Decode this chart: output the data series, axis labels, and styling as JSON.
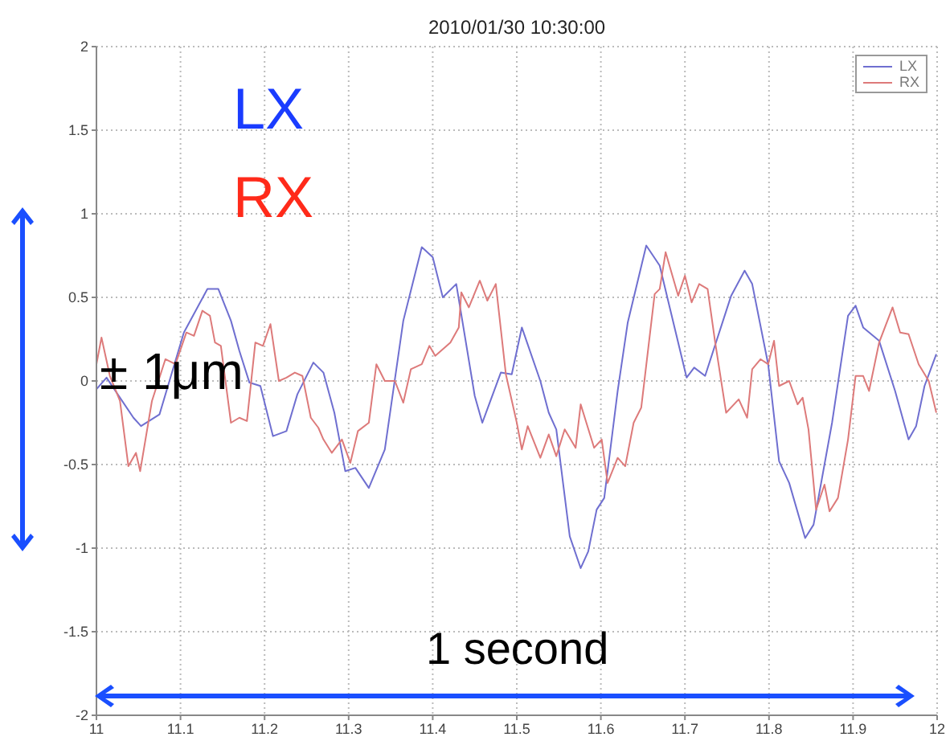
{
  "chart_data": {
    "type": "line",
    "title": "2010/01/30 10:30:00",
    "annotations": [
      "LX",
      "RX",
      "± 1μm",
      "1 second"
    ],
    "xlim": [
      11,
      12
    ],
    "xticks": [
      11,
      11.1,
      11.2,
      11.3,
      11.4,
      11.5,
      11.6,
      11.7,
      11.8,
      11.9,
      12
    ],
    "ylim": [
      -2,
      2
    ],
    "yticks": [
      -2,
      -1.5,
      -1,
      -0.5,
      0,
      0.5,
      1,
      1.5,
      2
    ],
    "grid": true,
    "legend": "top right",
    "marker": "none",
    "line_style": "solid",
    "series": [
      {
        "name": "LX",
        "color": "#6f6fd0",
        "x": [
          11,
          11.012,
          11.044,
          11.053,
          11.075,
          11.104,
          11.132,
          11.145,
          11.16,
          11.17,
          11.182,
          11.195,
          11.21,
          11.226,
          11.239,
          11.258,
          11.27,
          11.283,
          11.296,
          11.308,
          11.324,
          11.343,
          11.365,
          11.387,
          11.4,
          11.412,
          11.428,
          11.45,
          11.459,
          11.481,
          11.494,
          11.506,
          11.528,
          11.538,
          11.547,
          11.563,
          11.576,
          11.585,
          11.595,
          11.604,
          11.62,
          11.632,
          11.654,
          11.67,
          11.68,
          11.702,
          11.711,
          11.724,
          11.755,
          11.771,
          11.78,
          11.799,
          11.812,
          11.824,
          11.843,
          11.853,
          11.875,
          11.894,
          11.903,
          11.912,
          11.931,
          11.95,
          11.966,
          11.975,
          11.985,
          11.999
        ],
        "values": [
          -0.05,
          0.02,
          -0.22,
          -0.27,
          -0.2,
          0.29,
          0.55,
          0.55,
          0.36,
          0.18,
          -0.01,
          -0.03,
          -0.33,
          -0.3,
          -0.08,
          0.11,
          0.05,
          -0.19,
          -0.54,
          -0.52,
          -0.64,
          -0.41,
          0.36,
          0.8,
          0.74,
          0.5,
          0.58,
          -0.09,
          -0.25,
          0.05,
          0.04,
          0.32,
          0,
          -0.19,
          -0.29,
          -0.93,
          -1.12,
          -1.02,
          -0.77,
          -0.7,
          -0.06,
          0.35,
          0.81,
          0.69,
          0.48,
          0.02,
          0.08,
          0.03,
          0.51,
          0.66,
          0.58,
          0.1,
          -0.48,
          -0.61,
          -0.94,
          -0.86,
          -0.25,
          0.39,
          0.45,
          0.32,
          0.24,
          -0.06,
          -0.35,
          -0.27,
          -0.03,
          0.16
        ]
      },
      {
        "name": "RX",
        "color": "#dd7a7a",
        "x": [
          11,
          11.006,
          11.016,
          11.028,
          11.038,
          11.047,
          11.052,
          11.066,
          11.082,
          11.094,
          11.107,
          11.116,
          11.126,
          11.135,
          11.141,
          11.148,
          11.16,
          11.17,
          11.179,
          11.189,
          11.198,
          11.207,
          11.217,
          11.226,
          11.236,
          11.245,
          11.255,
          11.264,
          11.27,
          11.28,
          11.292,
          11.302,
          11.311,
          11.324,
          11.333,
          11.343,
          11.355,
          11.365,
          11.374,
          11.387,
          11.396,
          11.403,
          11.421,
          11.431,
          11.434,
          11.443,
          11.456,
          11.465,
          11.475,
          11.487,
          11.5,
          11.506,
          11.513,
          11.528,
          11.538,
          11.547,
          11.557,
          11.57,
          11.576,
          11.592,
          11.601,
          11.608,
          11.62,
          11.629,
          11.639,
          11.648,
          11.664,
          11.67,
          11.677,
          11.692,
          11.7,
          11.708,
          11.717,
          11.727,
          11.736,
          11.749,
          11.764,
          11.774,
          11.78,
          11.79,
          11.799,
          11.806,
          11.812,
          11.824,
          11.834,
          11.84,
          11.847,
          11.856,
          11.866,
          11.872,
          11.882,
          11.894,
          11.903,
          11.912,
          11.919,
          11.931,
          11.947,
          11.956,
          11.966,
          11.978,
          11.99,
          11.999
        ],
        "values": [
          0.1,
          0.26,
          0.03,
          -0.12,
          -0.51,
          -0.43,
          -0.54,
          -0.12,
          0.13,
          0.1,
          0.29,
          0.27,
          0.42,
          0.39,
          0.23,
          0.21,
          -0.25,
          -0.22,
          -0.24,
          0.23,
          0.21,
          0.34,
          0,
          0.02,
          0.05,
          0.03,
          -0.22,
          -0.28,
          -0.35,
          -0.43,
          -0.35,
          -0.49,
          -0.3,
          -0.25,
          0.1,
          0,
          0,
          -0.13,
          0.07,
          0.1,
          0.21,
          0.15,
          0.23,
          0.32,
          0.53,
          0.44,
          0.6,
          0.48,
          0.58,
          0.04,
          -0.25,
          -0.41,
          -0.27,
          -0.46,
          -0.32,
          -0.45,
          -0.29,
          -0.4,
          -0.14,
          -0.4,
          -0.35,
          -0.61,
          -0.46,
          -0.51,
          -0.25,
          -0.16,
          0.52,
          0.55,
          0.77,
          0.51,
          0.63,
          0.47,
          0.58,
          0.55,
          0.23,
          -0.19,
          -0.11,
          -0.22,
          0.07,
          0.13,
          0.1,
          0.24,
          -0.03,
          0,
          -0.14,
          -0.1,
          -0.29,
          -0.77,
          -0.62,
          -0.78,
          -0.7,
          -0.35,
          0.03,
          0.03,
          -0.06,
          0.23,
          0.44,
          0.29,
          0.28,
          0.1,
          0,
          -0.19
        ]
      }
    ]
  }
}
